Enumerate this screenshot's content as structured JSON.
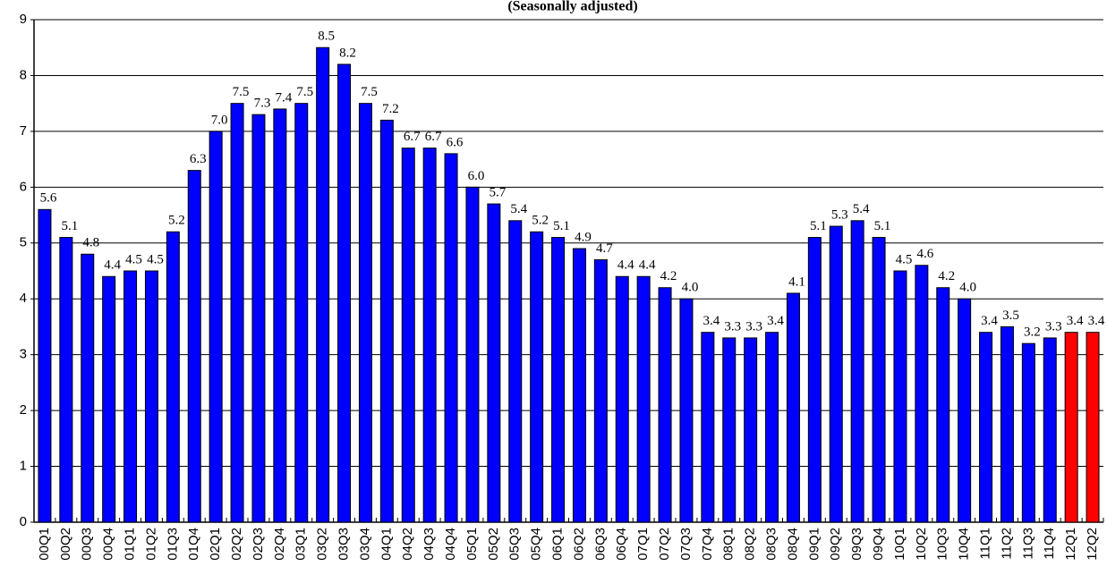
{
  "chart_data": {
    "type": "bar",
    "title": "(Seasonally adjusted)",
    "categories": [
      "00Q1",
      "00Q2",
      "00Q3",
      "00Q4",
      "01Q1",
      "01Q2",
      "01Q3",
      "01Q4",
      "02Q1",
      "02Q2",
      "02Q3",
      "02Q4",
      "03Q1",
      "03Q2",
      "03Q3",
      "03Q4",
      "04Q1",
      "04Q2",
      "04Q3",
      "04Q4",
      "05Q1",
      "05Q2",
      "05Q3",
      "05Q4",
      "06Q1",
      "06Q2",
      "06Q3",
      "06Q4",
      "07Q1",
      "07Q2",
      "07Q3",
      "07Q4",
      "08Q1",
      "08Q2",
      "08Q3",
      "08Q4",
      "09Q1",
      "09Q2",
      "09Q3",
      "09Q4",
      "10Q1",
      "10Q2",
      "10Q3",
      "10Q4",
      "11Q1",
      "11Q2",
      "11Q3",
      "11Q4",
      "12Q1",
      "12Q2"
    ],
    "values": [
      5.6,
      5.1,
      4.8,
      4.4,
      4.5,
      4.5,
      5.2,
      6.3,
      7.0,
      7.5,
      7.3,
      7.4,
      7.5,
      8.5,
      8.2,
      7.5,
      7.2,
      6.7,
      6.7,
      6.6,
      6.0,
      5.7,
      5.4,
      5.2,
      5.1,
      4.9,
      4.7,
      4.4,
      4.4,
      4.2,
      4.0,
      3.4,
      3.3,
      3.3,
      3.4,
      4.1,
      5.1,
      5.3,
      5.4,
      5.1,
      4.5,
      4.6,
      4.2,
      4.0,
      3.4,
      3.5,
      3.2,
      3.3,
      3.4,
      3.4
    ],
    "value_labels": [
      "5.6",
      "5.1",
      "4.8",
      "4.4",
      "4.5",
      "4.5",
      "5.2",
      "6.3",
      "7.0",
      "7.5",
      "7.3",
      "7.4",
      "7.5",
      "8.5",
      "8.2",
      "7.5",
      "7.2",
      "6.7",
      "6.7",
      "6.6",
      "6.0",
      "5.7",
      "5.4",
      "5.2",
      "5.1",
      "4.9",
      "4.7",
      "4.4",
      "4.4",
      "4.2",
      "4.0",
      "3.4",
      "3.3",
      "3.3",
      "3.4",
      "4.1",
      "5.1",
      "5.3",
      "5.4",
      "5.1",
      "4.5",
      "4.6",
      "4.2",
      "4.0",
      "3.4",
      "3.5",
      "3.2",
      "3.3",
      "3.4",
      "3.4"
    ],
    "colors": [
      "#0000ff",
      "#0000ff",
      "#0000ff",
      "#0000ff",
      "#0000ff",
      "#0000ff",
      "#0000ff",
      "#0000ff",
      "#0000ff",
      "#0000ff",
      "#0000ff",
      "#0000ff",
      "#0000ff",
      "#0000ff",
      "#0000ff",
      "#0000ff",
      "#0000ff",
      "#0000ff",
      "#0000ff",
      "#0000ff",
      "#0000ff",
      "#0000ff",
      "#0000ff",
      "#0000ff",
      "#0000ff",
      "#0000ff",
      "#0000ff",
      "#0000ff",
      "#0000ff",
      "#0000ff",
      "#0000ff",
      "#0000ff",
      "#0000ff",
      "#0000ff",
      "#0000ff",
      "#0000ff",
      "#0000ff",
      "#0000ff",
      "#0000ff",
      "#0000ff",
      "#0000ff",
      "#0000ff",
      "#0000ff",
      "#0000ff",
      "#0000ff",
      "#0000ff",
      "#0000ff",
      "#0000ff",
      "#ff0000",
      "#ff0000"
    ],
    "ylim": [
      0,
      9
    ],
    "yticks": [
      0,
      1,
      2,
      3,
      4,
      5,
      6,
      7,
      8,
      9
    ],
    "grid": true
  }
}
